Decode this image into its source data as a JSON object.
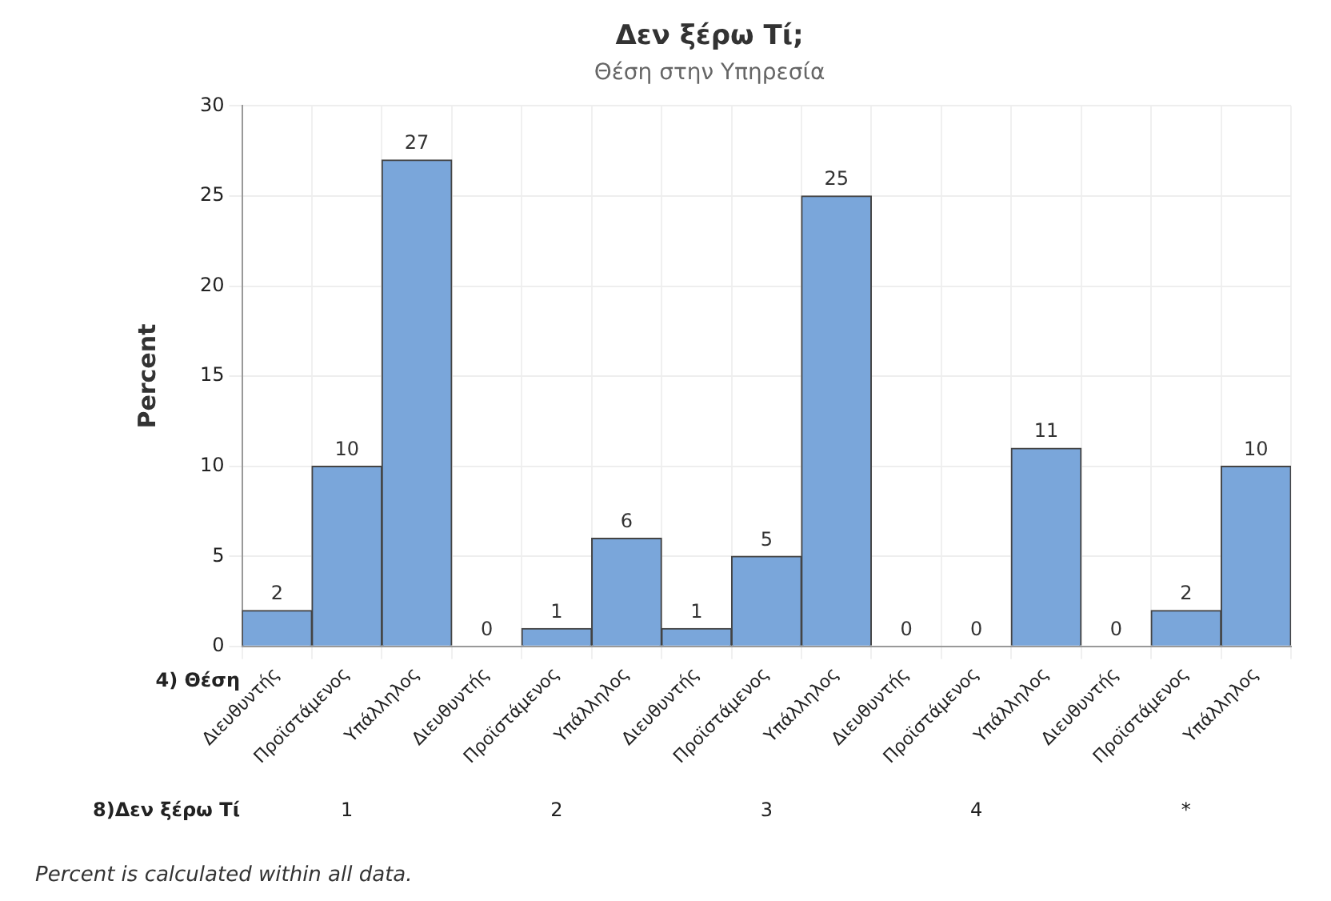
{
  "chart_data": {
    "type": "bar",
    "title": "Δεν ξέρω Τί;",
    "subtitle": "Θέση στην Υπηρεσία",
    "ylabel": "Percent",
    "xlabel": "4) Θέση",
    "categories": [
      "Διευθυντής",
      "Προϊστάμενος",
      "Υπάλληλος",
      "Διευθυντής",
      "Προϊστάμενος",
      "Υπάλληλος",
      "Διευθυντής",
      "Προϊστάμενος",
      "Υπάλληλος",
      "Διευθυντής",
      "Προϊστάμενος",
      "Υπάλληλος",
      "Διευθυντής",
      "Προϊστάμενος",
      "Υπάλληλος"
    ],
    "values": [
      2,
      10,
      27,
      0,
      1,
      6,
      1,
      5,
      25,
      0,
      0,
      11,
      0,
      2,
      10
    ],
    "color": "#7aa6da",
    "ylim": [
      0,
      30
    ],
    "yticks": [
      0,
      5,
      10,
      15,
      20,
      25,
      30
    ],
    "grid": true,
    "data_labels": true,
    "annotations": [
      "8)Δεν ξέρω Τί",
      "1",
      "2",
      "3",
      "4",
      "*",
      "Percent is calculated within all data."
    ]
  }
}
